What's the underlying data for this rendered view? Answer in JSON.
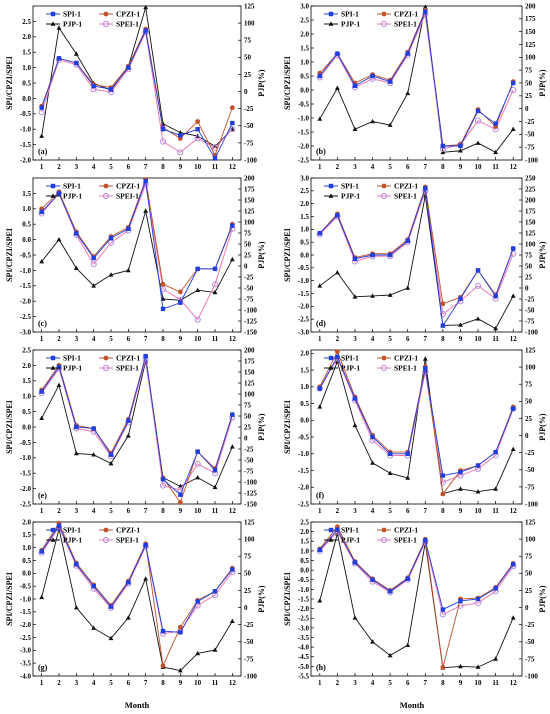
{
  "figure": {
    "xlabel": "Month",
    "left_axis_label": "SPI/CPZI/SPEI",
    "right_axis_label": "PJP(%)"
  },
  "colors": {
    "SPI-1": "#1f3fe0",
    "CPZI-1": "#c0512b",
    "PJP-1": "#111111",
    "SPEI-1": "#b58ee8",
    "SPEI-1-line": "#f07ab3"
  },
  "chart_data": [
    {
      "panel": "(a)",
      "type": "line",
      "x": [
        1,
        2,
        3,
        4,
        5,
        6,
        7,
        8,
        9,
        10,
        11,
        12
      ],
      "ylim": [
        -2.0,
        3.0
      ],
      "yticks": [
        -2.0,
        -1.5,
        -1.0,
        -0.5,
        0.0,
        0.5,
        1.0,
        1.5,
        2.0,
        2.5
      ],
      "y2lim": [
        -100,
        125
      ],
      "y2ticks": [
        -100,
        -75,
        -50,
        -25,
        0,
        25,
        50,
        75,
        100,
        125
      ],
      "legend": [
        "SPI-1",
        "CPZI-1",
        "PJP-1",
        "SPEI-1"
      ],
      "series": [
        {
          "name": "SPI-1",
          "y": [
            -0.3,
            1.3,
            1.15,
            0.4,
            0.3,
            1.0,
            2.2,
            -1.0,
            -1.2,
            -1.0,
            -1.95,
            -0.8
          ]
        },
        {
          "name": "CPZI-1",
          "y": [
            -0.25,
            1.3,
            1.15,
            0.45,
            0.35,
            1.05,
            2.25,
            -0.95,
            -1.3,
            -0.75,
            -1.85,
            -0.3
          ]
        },
        {
          "name": "SPEI-1",
          "y": [
            -0.45,
            1.25,
            1.1,
            0.3,
            0.2,
            0.95,
            2.15,
            -1.4,
            -1.75,
            -1.3,
            -1.6,
            -1.0
          ]
        },
        {
          "name": "PJP-1",
          "y2": [
            -65,
            93,
            55,
            12,
            2,
            36,
            123,
            -47,
            -60,
            -65,
            -80,
            -55
          ]
        }
      ]
    },
    {
      "panel": "(b)",
      "type": "line",
      "x": [
        1,
        2,
        3,
        4,
        5,
        6,
        7,
        8,
        9,
        10,
        11,
        12
      ],
      "ylim": [
        -2.5,
        3.0
      ],
      "yticks": [
        -2.5,
        -2.0,
        -1.5,
        -1.0,
        -0.5,
        0.0,
        0.5,
        1.0,
        1.5,
        2.0,
        2.5,
        3.0
      ],
      "y2lim": [
        -100,
        200
      ],
      "y2ticks": [
        -100,
        -75,
        -50,
        -25,
        0,
        25,
        50,
        75,
        100,
        125,
        150,
        175,
        200
      ],
      "legend": [
        "SPI-1",
        "CPZI-1",
        "PJP-1",
        "SPEI-1"
      ],
      "series": [
        {
          "name": "SPI-1",
          "y": [
            0.5,
            1.3,
            0.15,
            0.5,
            0.3,
            1.3,
            2.8,
            -2.0,
            -2.0,
            -0.75,
            -1.2,
            0.25
          ]
        },
        {
          "name": "CPZI-1",
          "y": [
            0.6,
            1.3,
            0.25,
            0.55,
            0.35,
            1.35,
            2.85,
            -2.0,
            -1.95,
            -0.7,
            -1.3,
            0.3
          ]
        },
        {
          "name": "SPEI-1",
          "y": [
            0.45,
            1.25,
            0.1,
            0.4,
            0.25,
            1.25,
            2.7,
            -2.1,
            -1.95,
            -1.1,
            -1.4,
            0.0
          ]
        },
        {
          "name": "PJP-1",
          "y2": [
            -20,
            40,
            -40,
            -25,
            -32,
            30,
            198,
            -85,
            -82,
            -67,
            -85,
            -40
          ]
        }
      ]
    },
    {
      "panel": "(c)",
      "type": "line",
      "x": [
        1,
        2,
        3,
        4,
        5,
        6,
        7,
        8,
        9,
        10,
        11,
        12
      ],
      "ylim": [
        -3.0,
        2.0
      ],
      "yticks": [
        -3.0,
        -2.5,
        -2.0,
        -1.5,
        -1.0,
        -0.5,
        0.0,
        0.5,
        1.0,
        1.5
      ],
      "y2lim": [
        -150,
        200
      ],
      "y2ticks": [
        -150,
        -125,
        -100,
        -75,
        -50,
        -25,
        0,
        25,
        50,
        75,
        100,
        125,
        150,
        175,
        200
      ],
      "legend": [
        "SPI-1",
        "CPZI-1",
        "PJP-1",
        "SPEI-1"
      ],
      "series": [
        {
          "name": "SPI-1",
          "y": [
            0.9,
            1.5,
            0.2,
            -0.6,
            0.05,
            0.35,
            1.9,
            -2.25,
            -2.05,
            -0.95,
            -0.95,
            0.45
          ]
        },
        {
          "name": "CPZI-1",
          "y": [
            1.0,
            1.55,
            0.25,
            -0.55,
            0.1,
            0.4,
            1.95,
            -1.45,
            -1.7,
            -0.95,
            -0.95,
            0.5
          ]
        },
        {
          "name": "SPEI-1",
          "y": [
            0.85,
            1.5,
            0.15,
            -0.8,
            -0.1,
            0.3,
            1.8,
            -1.6,
            -1.95,
            -2.6,
            -1.45,
            0.35
          ]
        },
        {
          "name": "PJP-1",
          "y2": [
            10,
            60,
            -5,
            -45,
            -20,
            -10,
            125,
            -75,
            -78,
            -55,
            -60,
            15
          ]
        }
      ]
    },
    {
      "panel": "(d)",
      "type": "line",
      "x": [
        1,
        2,
        3,
        4,
        5,
        6,
        7,
        8,
        9,
        10,
        11,
        12
      ],
      "ylim": [
        -3.0,
        3.0
      ],
      "yticks": [
        -3.0,
        -2.5,
        -2.0,
        -1.5,
        -1.0,
        -0.5,
        0.0,
        0.5,
        1.0,
        1.5,
        2.0,
        2.5,
        3.0
      ],
      "y2lim": [
        -100,
        250
      ],
      "y2ticks": [
        -100,
        -75,
        -50,
        -25,
        0,
        25,
        50,
        75,
        100,
        125,
        150,
        175,
        200,
        225,
        250
      ],
      "legend": [
        "SPI-1",
        "CPZI-1",
        "PJP-1",
        "SPEI-1"
      ],
      "series": [
        {
          "name": "SPI-1",
          "y": [
            0.85,
            1.55,
            -0.15,
            0.0,
            0.0,
            0.55,
            2.6,
            -2.75,
            -1.7,
            -0.6,
            -1.6,
            0.25
          ]
        },
        {
          "name": "CPZI-1",
          "y": [
            0.85,
            1.6,
            -0.1,
            0.05,
            0.05,
            0.6,
            2.65,
            -1.9,
            -1.65,
            -0.6,
            -1.55,
            0.25
          ]
        },
        {
          "name": "SPEI-1",
          "y": [
            0.8,
            1.5,
            -0.25,
            -0.05,
            -0.05,
            0.5,
            2.5,
            -2.3,
            -1.8,
            -1.2,
            -1.7,
            0.05
          ]
        },
        {
          "name": "PJP-1",
          "y2": [
            5,
            35,
            -20,
            -18,
            -16,
            0,
            210,
            -85,
            -84,
            -70,
            -92,
            -18
          ]
        }
      ]
    },
    {
      "panel": "(e)",
      "type": "line",
      "x": [
        1,
        2,
        3,
        4,
        5,
        6,
        7,
        8,
        9,
        10,
        11,
        12
      ],
      "ylim": [
        -2.5,
        2.5
      ],
      "yticks": [
        -2.5,
        -2.0,
        -1.5,
        -1.0,
        -0.5,
        0.0,
        0.5,
        1.0,
        1.5,
        2.0,
        2.5
      ],
      "y2lim": [
        -150,
        200
      ],
      "y2ticks": [
        -150,
        -125,
        -100,
        -75,
        -50,
        -25,
        0,
        25,
        50,
        75,
        100,
        125,
        150,
        175,
        200
      ],
      "legend": [
        "SPI-1",
        "CPZI-1",
        "PJP-1",
        "SPEI-1"
      ],
      "series": [
        {
          "name": "SPI-1",
          "y": [
            1.15,
            1.95,
            0.0,
            -0.05,
            -0.9,
            0.2,
            2.3,
            -1.7,
            -2.2,
            -0.8,
            -1.4,
            0.4
          ]
        },
        {
          "name": "CPZI-1",
          "y": [
            1.2,
            2.0,
            0.05,
            -0.05,
            -0.85,
            0.25,
            2.3,
            -1.65,
            -2.45,
            -0.8,
            -1.35,
            0.4
          ]
        },
        {
          "name": "SPEI-1",
          "y": [
            1.1,
            1.9,
            -0.05,
            -0.15,
            -0.95,
            0.15,
            2.2,
            -1.9,
            -2.05,
            -1.2,
            -1.5,
            0.3
          ]
        },
        {
          "name": "PJP-1",
          "y2": [
            45,
            120,
            -35,
            -38,
            -58,
            5,
            175,
            -90,
            -110,
            -90,
            -112,
            -20
          ]
        }
      ]
    },
    {
      "panel": "(f)",
      "type": "line",
      "x": [
        1,
        2,
        3,
        4,
        5,
        6,
        7,
        8,
        9,
        10,
        11,
        12
      ],
      "ylim": [
        -2.5,
        2.1
      ],
      "yticks": [
        -2.5,
        -2.0,
        -1.5,
        -1.0,
        -0.5,
        0.0,
        0.5,
        1.0,
        1.5,
        2.0
      ],
      "y2lim": [
        -100,
        125
      ],
      "y2ticks": [
        -100,
        -75,
        -50,
        -25,
        0,
        25,
        50,
        75,
        100,
        125
      ],
      "legend": [
        "SPI-1",
        "CPZI-1",
        "PJP-1",
        "SPEI-1"
      ],
      "series": [
        {
          "name": "SPI-1",
          "y": [
            0.95,
            1.9,
            0.65,
            -0.5,
            -1.0,
            -1.0,
            1.55,
            -1.65,
            -1.55,
            -1.35,
            -0.95,
            0.35
          ]
        },
        {
          "name": "CPZI-1",
          "y": [
            1.0,
            2.05,
            0.7,
            -0.45,
            -0.95,
            -0.95,
            1.6,
            -2.2,
            -1.5,
            -1.35,
            -0.95,
            0.4
          ]
        },
        {
          "name": "SPEI-1",
          "y": [
            0.95,
            1.85,
            0.6,
            -0.6,
            -1.05,
            -1.05,
            1.45,
            -1.85,
            -1.65,
            -1.45,
            -1.05,
            0.35
          ]
        },
        {
          "name": "PJP-1",
          "y2": [
            42,
            108,
            15,
            -40,
            -55,
            -62,
            112,
            -85,
            -78,
            -82,
            -78,
            -20
          ]
        }
      ]
    },
    {
      "panel": "(g)",
      "type": "line",
      "x": [
        1,
        2,
        3,
        4,
        5,
        6,
        7,
        8,
        9,
        10,
        11,
        12
      ],
      "ylim": [
        -4.0,
        2.0
      ],
      "yticks": [
        -4.0,
        -3.5,
        -3.0,
        -2.5,
        -2.0,
        -1.5,
        -1.0,
        -0.5,
        0.0,
        0.5,
        1.0,
        1.5,
        2.0
      ],
      "y2lim": [
        -100,
        125
      ],
      "y2ticks": [
        -100,
        -75,
        -50,
        -25,
        0,
        25,
        50,
        75,
        100,
        125
      ],
      "legend": [
        "SPI-1",
        "CPZI-1",
        "PJP-1",
        "SPEI-1"
      ],
      "series": [
        {
          "name": "SPI-1",
          "y": [
            0.85,
            1.85,
            0.35,
            -0.5,
            -1.3,
            -0.35,
            1.1,
            -2.25,
            -2.3,
            -1.1,
            -0.7,
            0.15
          ]
        },
        {
          "name": "CPZI-1",
          "y": [
            0.9,
            1.95,
            0.4,
            -0.45,
            -1.25,
            -0.3,
            1.15,
            -3.6,
            -2.1,
            -1.05,
            -0.7,
            0.2
          ]
        },
        {
          "name": "SPEI-1",
          "y": [
            0.8,
            1.8,
            0.3,
            -0.6,
            -1.35,
            -0.4,
            1.05,
            -2.35,
            -2.25,
            -1.25,
            -0.85,
            0.05
          ]
        },
        {
          "name": "PJP-1",
          "y2": [
            15,
            115,
            0,
            -30,
            -45,
            -15,
            42,
            -87,
            -92,
            -67,
            -62,
            -20
          ]
        }
      ]
    },
    {
      "panel": "(h)",
      "type": "line",
      "x": [
        1,
        2,
        3,
        4,
        5,
        6,
        7,
        8,
        9,
        10,
        11,
        12
      ],
      "ylim": [
        -5.5,
        2.5
      ],
      "yticks": [
        -5.5,
        -5.0,
        -4.5,
        -4.0,
        -3.5,
        -3.0,
        -2.5,
        -2.0,
        -1.5,
        -1.0,
        -0.5,
        0.0,
        0.5,
        1.0,
        1.5,
        2.0,
        2.5
      ],
      "y2lim": [
        -100,
        125
      ],
      "y2ticks": [
        -100,
        -75,
        -50,
        -25,
        0,
        25,
        50,
        75,
        100,
        125
      ],
      "legend": [
        "SPI-1",
        "CPZI-1",
        "PJP-1",
        "SPEI-1"
      ],
      "series": [
        {
          "name": "SPI-1",
          "y": [
            1.05,
            2.1,
            0.4,
            -0.5,
            -1.1,
            -0.45,
            1.55,
            -2.05,
            -1.6,
            -1.5,
            -0.95,
            0.3
          ]
        },
        {
          "name": "CPZI-1",
          "y": [
            1.1,
            2.25,
            0.45,
            -0.45,
            -1.05,
            -0.4,
            1.6,
            -5.05,
            -1.5,
            -1.45,
            -0.9,
            0.35
          ]
        },
        {
          "name": "SPEI-1",
          "y": [
            1.0,
            2.0,
            0.35,
            -0.6,
            -1.15,
            -0.5,
            1.45,
            -2.3,
            -1.85,
            -1.7,
            -1.1,
            0.2
          ]
        },
        {
          "name": "PJP-1",
          "y2": [
            10,
            108,
            -15,
            -50,
            -70,
            -55,
            95,
            -88,
            -86,
            -87,
            -75,
            -15
          ]
        }
      ]
    }
  ]
}
